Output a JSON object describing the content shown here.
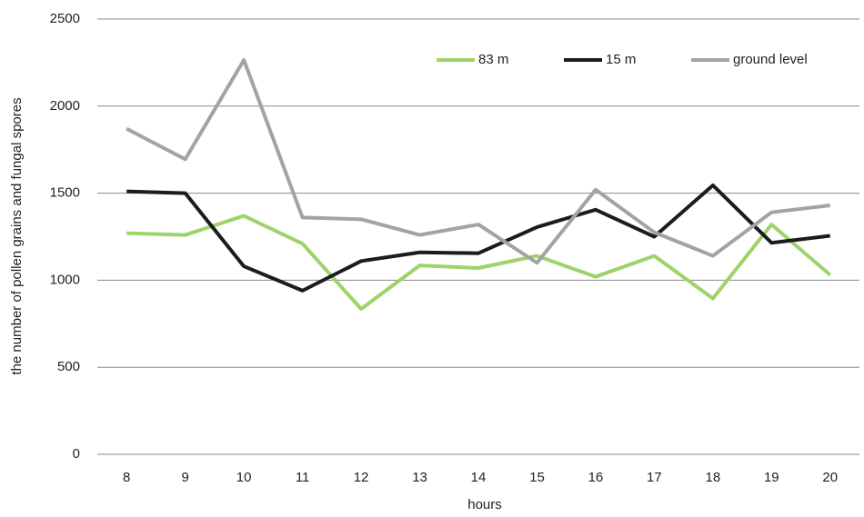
{
  "chart_data": {
    "type": "line",
    "x_label": "hours",
    "y_label": "the number of pollen grains and fungal spores",
    "categories": [
      "8",
      "9",
      "10",
      "11",
      "12",
      "13",
      "14",
      "15",
      "16",
      "17",
      "18",
      "19",
      "20"
    ],
    "series": [
      {
        "name": "83 m",
        "color": "#9fd26a",
        "values": [
          1270,
          1260,
          1370,
          1210,
          835,
          1085,
          1070,
          1140,
          1020,
          1140,
          895,
          1320,
          1030
        ]
      },
      {
        "name": "15 m",
        "color": "#1c1c1c",
        "values": [
          1510,
          1500,
          1080,
          940,
          1110,
          1160,
          1155,
          1305,
          1405,
          1250,
          1545,
          1215,
          1255
        ]
      },
      {
        "name": "ground level",
        "color": "#a3a3a5",
        "values": [
          1870,
          1695,
          2265,
          1360,
          1350,
          1260,
          1320,
          1100,
          1520,
          1275,
          1140,
          1390,
          1430
        ]
      }
    ],
    "ylim": [
      0,
      2500
    ],
    "yticks": [
      0,
      500,
      1000,
      1500,
      2000,
      2500
    ],
    "grid": true,
    "legend": "top-right"
  }
}
